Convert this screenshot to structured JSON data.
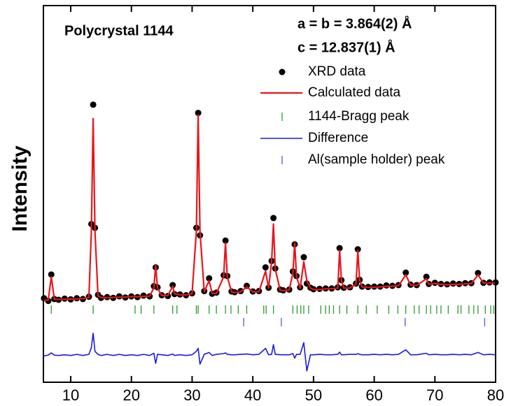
{
  "chart_data": {
    "type": "scatter",
    "ylabel": "Intensity",
    "annotations": [
      "Polycrystal 1144",
      "a = b = 3.864(2) Å",
      "c = 12.837(1) Å"
    ],
    "xlim": [
      5.5,
      80
    ],
    "ylim": [
      0,
      100
    ],
    "xticks": [
      10,
      20,
      30,
      40,
      50,
      60,
      70,
      80
    ],
    "x": [
      5.6,
      6.3,
      6.8,
      7.3,
      8,
      9,
      10,
      11,
      12,
      13,
      13.4,
      13.7,
      14,
      14.5,
      15,
      16,
      17,
      18,
      19,
      20,
      21,
      22,
      23,
      23.7,
      24,
      24.3,
      25,
      26,
      26.8,
      27.1,
      28,
      29,
      30,
      30.7,
      31,
      31.3,
      32,
      32.8,
      33.3,
      34,
      35.2,
      35.5,
      35.8,
      36.5,
      37,
      38,
      39,
      40,
      41,
      42.1,
      42.6,
      43.1,
      43.4,
      43.7,
      44.5,
      45,
      46,
      46.6,
      46.9,
      47.2,
      47.8,
      48.4,
      48.9,
      49.5,
      50,
      51,
      52,
      53,
      54,
      54.3,
      54.6,
      55,
      56,
      57,
      57.3,
      57.6,
      58,
      59,
      60,
      61,
      62,
      63,
      64,
      65.2,
      66,
      67,
      68.6,
      69,
      70,
      71,
      72,
      73,
      74,
      75,
      76,
      77.1,
      78,
      79,
      80
    ],
    "series": [
      {
        "name": "XRD data",
        "color": "#000000",
        "values": [
          22.3,
          21.6,
          28.6,
          22.1,
          21.9,
          22.2,
          22.0,
          22.3,
          22.1,
          22.7,
          42,
          73.7,
          41,
          23.2,
          22.4,
          22.6,
          22.4,
          22.8,
          22.5,
          22.8,
          22.6,
          23.0,
          22.8,
          25.5,
          30.5,
          25.2,
          23.1,
          22.9,
          25.8,
          23.4,
          23.3,
          23.1,
          23.6,
          41,
          71.5,
          39,
          24.2,
          27.6,
          23.5,
          23.8,
          28.4,
          37.6,
          28.2,
          24.1,
          23.9,
          24.2,
          25.6,
          24.1,
          24.2,
          30.5,
          25.1,
          32.2,
          43.6,
          30.2,
          24.6,
          24.4,
          24.6,
          29.4,
          36.6,
          28.2,
          25.2,
          33.2,
          26.2,
          25.1,
          24.7,
          24.8,
          24.9,
          24.9,
          25.2,
          35.6,
          27.1,
          25.1,
          25.2,
          26.2,
          35.3,
          27.2,
          25.4,
          25.3,
          25.4,
          25.4,
          25.7,
          25.6,
          25.8,
          29.1,
          25.9,
          25.8,
          28.0,
          26.1,
          26.4,
          26.1,
          26.0,
          26.2,
          26.1,
          26.3,
          26.3,
          29.0,
          26.4,
          26.5,
          26.5
        ]
      },
      {
        "name": "Calculated data",
        "color": "#e8151b",
        "values": [
          21.8,
          21.8,
          28,
          22,
          22,
          22,
          22.1,
          22.1,
          22.2,
          22.5,
          40,
          70,
          40,
          23,
          22.5,
          22.4,
          22.5,
          22.6,
          22.6,
          22.7,
          22.7,
          22.8,
          22.9,
          25,
          31,
          25,
          23,
          23,
          25.5,
          23.5,
          23.2,
          23.2,
          23.5,
          40,
          71,
          40,
          24,
          27,
          23.6,
          23.6,
          28,
          37,
          28,
          24,
          23.8,
          24,
          25.3,
          24,
          24,
          29.5,
          25,
          32,
          42,
          30,
          24.5,
          24.3,
          24.5,
          29,
          37,
          28,
          25,
          32,
          27,
          25,
          24.6,
          24.6,
          24.8,
          24.8,
          25,
          35,
          27,
          25,
          25,
          26,
          35,
          27,
          25.3,
          25.2,
          25.2,
          25.3,
          25.5,
          25.5,
          25.6,
          28.5,
          25.8,
          25.7,
          27.5,
          26,
          26.2,
          26,
          25.9,
          26,
          26,
          26.1,
          26.2,
          28.5,
          26.3,
          26.3,
          26.4
        ]
      },
      {
        "name": "1144-Bragg peak",
        "color": "#2e9a2e",
        "x": [
          6.8,
          13.7,
          20.6,
          21.6,
          23.7,
          26.8,
          27.5,
          30.7,
          31,
          32.8,
          34,
          35.5,
          36.4,
          37.6,
          39,
          41.8,
          42.2,
          43.4,
          46.6,
          47.3,
          47.9,
          48.4,
          49.2,
          51.2,
          52,
          52.6,
          53.3,
          54.3,
          55.5,
          57.3,
          58.7,
          60.5,
          62.4,
          63.9,
          65.2,
          66.6,
          67.4,
          68.6,
          69.3,
          70.3,
          71,
          72.2,
          73.8,
          74.3,
          75.6,
          76.4,
          77.1,
          78.3,
          79.2,
          79.7
        ]
      },
      {
        "name": "Difference",
        "color": "#1a1ae6",
        "values": [
          7.0,
          7.2,
          7.8,
          7.2,
          7.1,
          7.3,
          7.1,
          7.4,
          7.1,
          7.4,
          9.2,
          13,
          8.2,
          7.4,
          7.1,
          7.4,
          7.1,
          7.4,
          7.1,
          7.3,
          7.1,
          7.4,
          7.1,
          7.7,
          5.0,
          7.4,
          7.3,
          7.1,
          7.5,
          7.1,
          7.3,
          7.1,
          7.3,
          8.2,
          9.0,
          4.8,
          7.4,
          7.9,
          7.1,
          7.4,
          7.6,
          7.8,
          7.4,
          7.3,
          7.3,
          7.4,
          7.5,
          7.3,
          7.4,
          9.0,
          7.3,
          7.4,
          10.0,
          7.4,
          7.3,
          7.3,
          7.3,
          7.6,
          6.4,
          7.4,
          7.4,
          10.5,
          3.0,
          7.3,
          7.3,
          7.4,
          7.3,
          7.3,
          7.4,
          8.0,
          7.3,
          7.3,
          7.4,
          7.4,
          7.6,
          7.4,
          7.3,
          7.3,
          7.4,
          7.3,
          7.4,
          7.3,
          7.4,
          8.6,
          7.3,
          7.3,
          7.7,
          7.3,
          7.4,
          7.3,
          7.3,
          7.4,
          7.3,
          7.4,
          7.3,
          7.9,
          7.3,
          7.4,
          7.3
        ]
      },
      {
        "name": "Al(sample holder) peak",
        "color": "#5555ee",
        "x": [
          38.5,
          44.7,
          65.1,
          78.2
        ]
      }
    ]
  }
}
